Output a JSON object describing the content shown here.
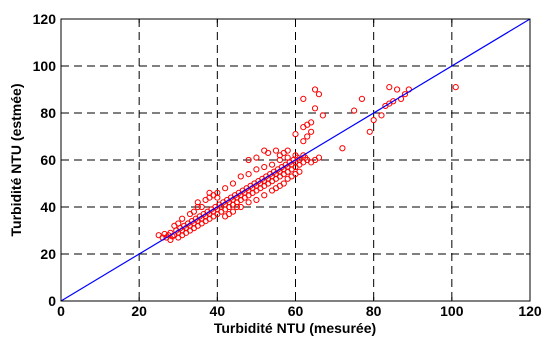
{
  "chart_data": {
    "type": "scatter",
    "title": "",
    "xlabel": "Turbidité NTU (mesurée)",
    "ylabel": "Turbidité NTU (estmée)",
    "xlim": [
      0,
      120
    ],
    "ylim": [
      0,
      120
    ],
    "xticks": [
      0,
      20,
      40,
      60,
      80,
      100,
      120
    ],
    "yticks": [
      0,
      20,
      40,
      60,
      80,
      100,
      120
    ],
    "grid": true,
    "point_color": "#ff0000",
    "line_color": "#0000ff",
    "reference_line": {
      "x": [
        0,
        120
      ],
      "y": [
        0,
        120
      ]
    },
    "series": [
      {
        "marker": "circle",
        "points": [
          [
            25,
            28
          ],
          [
            26,
            27
          ],
          [
            26.5,
            28.5
          ],
          [
            27,
            27
          ],
          [
            27.5,
            28
          ],
          [
            28,
            26
          ],
          [
            28,
            29
          ],
          [
            28.5,
            27.5
          ],
          [
            29,
            28
          ],
          [
            29.5,
            30
          ],
          [
            30,
            27
          ],
          [
            30,
            29
          ],
          [
            30.5,
            31
          ],
          [
            31,
            28
          ],
          [
            31,
            30
          ],
          [
            31.5,
            32
          ],
          [
            32,
            29
          ],
          [
            32,
            31
          ],
          [
            32.5,
            33
          ],
          [
            33,
            30
          ],
          [
            33,
            32
          ],
          [
            33.5,
            34
          ],
          [
            34,
            31
          ],
          [
            34,
            33
          ],
          [
            34.5,
            35
          ],
          [
            35,
            32
          ],
          [
            35,
            34
          ],
          [
            35.5,
            36
          ],
          [
            36,
            33
          ],
          [
            36,
            35
          ],
          [
            36.5,
            37
          ],
          [
            37,
            34
          ],
          [
            37,
            36
          ],
          [
            37.5,
            38
          ],
          [
            38,
            35
          ],
          [
            38,
            37
          ],
          [
            38.5,
            39
          ],
          [
            39,
            36
          ],
          [
            39,
            38
          ],
          [
            39.5,
            40
          ],
          [
            40,
            37
          ],
          [
            40,
            39
          ],
          [
            40.5,
            41
          ],
          [
            41,
            38
          ],
          [
            41,
            40
          ],
          [
            41.5,
            42
          ],
          [
            42,
            39
          ],
          [
            42,
            41
          ],
          [
            42.5,
            43
          ],
          [
            43,
            40
          ],
          [
            43,
            42
          ],
          [
            43.5,
            44
          ],
          [
            44,
            41
          ],
          [
            44,
            43
          ],
          [
            44.5,
            45
          ],
          [
            45,
            42
          ],
          [
            45,
            44
          ],
          [
            45.5,
            46
          ],
          [
            46,
            43
          ],
          [
            46,
            45
          ],
          [
            46.5,
            47
          ],
          [
            47,
            44
          ],
          [
            47,
            46
          ],
          [
            47.5,
            48
          ],
          [
            48,
            45
          ],
          [
            48,
            47
          ],
          [
            48.5,
            49
          ],
          [
            49,
            46
          ],
          [
            49,
            48
          ],
          [
            49.5,
            50
          ],
          [
            50,
            47
          ],
          [
            50,
            49
          ],
          [
            50.5,
            51
          ],
          [
            51,
            48
          ],
          [
            51,
            50
          ],
          [
            51.5,
            52
          ],
          [
            52,
            49
          ],
          [
            52,
            51
          ],
          [
            52.5,
            53
          ],
          [
            53,
            50
          ],
          [
            53,
            52
          ],
          [
            53.5,
            54
          ],
          [
            54,
            51
          ],
          [
            54,
            53
          ],
          [
            54.5,
            55
          ],
          [
            55,
            52
          ],
          [
            55,
            54
          ],
          [
            55.5,
            56
          ],
          [
            56,
            53
          ],
          [
            56,
            55
          ],
          [
            56.5,
            57
          ],
          [
            57,
            54
          ],
          [
            57,
            56
          ],
          [
            57.5,
            58
          ],
          [
            58,
            55
          ],
          [
            58,
            57
          ],
          [
            58.5,
            59
          ],
          [
            59,
            56
          ],
          [
            59,
            58
          ],
          [
            59.5,
            60
          ],
          [
            60,
            57
          ],
          [
            60,
            59
          ],
          [
            60.5,
            61
          ],
          [
            61,
            58
          ],
          [
            61,
            60
          ],
          [
            62,
            59
          ],
          [
            62.5,
            61
          ],
          [
            63,
            60
          ],
          [
            64,
            59
          ],
          [
            65,
            60
          ],
          [
            66,
            61
          ],
          [
            62,
            62
          ],
          [
            60,
            62
          ],
          [
            58,
            61
          ],
          [
            56,
            60
          ],
          [
            54,
            58
          ],
          [
            52,
            57
          ],
          [
            50,
            56
          ],
          [
            48,
            54
          ],
          [
            46,
            53
          ],
          [
            44,
            50
          ],
          [
            42,
            48
          ],
          [
            40,
            46
          ],
          [
            38,
            44
          ],
          [
            37,
            43
          ],
          [
            36,
            40
          ],
          [
            35,
            40
          ],
          [
            34,
            38
          ],
          [
            44,
            38
          ],
          [
            45,
            40
          ],
          [
            46,
            40
          ],
          [
            48,
            42
          ],
          [
            50,
            43
          ],
          [
            52,
            45
          ],
          [
            54,
            47
          ],
          [
            55,
            48
          ],
          [
            56,
            49
          ],
          [
            57,
            50
          ],
          [
            58,
            52
          ],
          [
            59,
            53
          ],
          [
            60,
            54
          ],
          [
            61,
            55
          ],
          [
            56,
            62
          ],
          [
            57,
            63
          ],
          [
            58,
            64
          ],
          [
            55,
            64
          ],
          [
            53,
            63
          ],
          [
            52,
            64
          ],
          [
            50,
            61
          ],
          [
            48,
            60
          ],
          [
            40,
            44
          ],
          [
            39,
            45
          ],
          [
            38,
            46
          ],
          [
            35,
            42
          ],
          [
            33,
            37
          ],
          [
            31,
            35
          ],
          [
            30,
            33
          ],
          [
            29,
            32
          ],
          [
            42,
            36
          ],
          [
            43,
            37
          ],
          [
            62,
            68
          ],
          [
            63,
            70
          ],
          [
            64,
            72
          ],
          [
            62,
            74
          ],
          [
            63,
            75
          ],
          [
            64,
            76
          ],
          [
            65,
            82
          ],
          [
            65,
            90
          ],
          [
            62,
            86
          ],
          [
            60,
            71
          ],
          [
            66,
            88
          ],
          [
            67,
            79
          ],
          [
            72,
            65
          ],
          [
            75,
            81
          ],
          [
            77,
            86
          ],
          [
            79,
            72
          ],
          [
            80,
            77
          ],
          [
            82,
            79
          ],
          [
            83,
            83
          ],
          [
            84,
            84
          ],
          [
            84,
            91
          ],
          [
            85,
            85
          ],
          [
            86,
            90
          ],
          [
            87,
            86
          ],
          [
            88,
            88
          ],
          [
            89,
            90
          ],
          [
            101,
            91
          ]
        ]
      }
    ]
  }
}
